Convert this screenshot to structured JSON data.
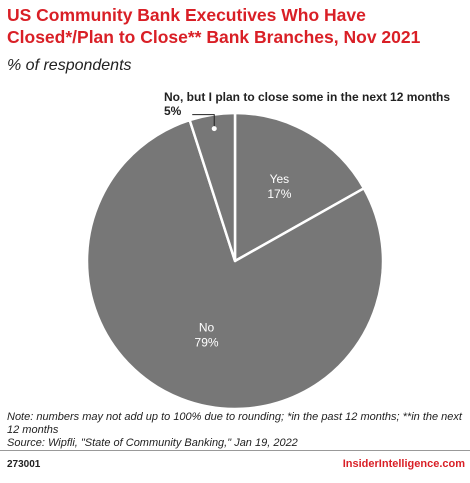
{
  "chart_data": {
    "type": "pie",
    "title": "US Community Bank Executives Who Have Closed*/Plan to Close** Bank Branches, Nov 2021",
    "subtitle": "% of respondents",
    "slices": [
      {
        "label": "Yes",
        "value": 17,
        "value_label": "17%"
      },
      {
        "label": "No",
        "value": 79,
        "value_label": "79%"
      },
      {
        "label": "No, but I plan to close some in the next 12 months",
        "value": 5,
        "value_label": "5%"
      }
    ],
    "colors": {
      "slice": "#777777",
      "separator": "#ffffff",
      "label_text": "#ffffff",
      "callout_text": "#222222"
    }
  },
  "notes": {
    "note": "Note: numbers may not add up to 100% due to rounding; *in the past 12 months; **in the next 12 months",
    "source": "Source: Wipfli, \"State of Community Banking,\" Jan 19, 2022"
  },
  "footer": {
    "chart_id": "273001",
    "brand": "InsiderIntelligence.com"
  },
  "colors": {
    "accent": "#d91f26"
  }
}
